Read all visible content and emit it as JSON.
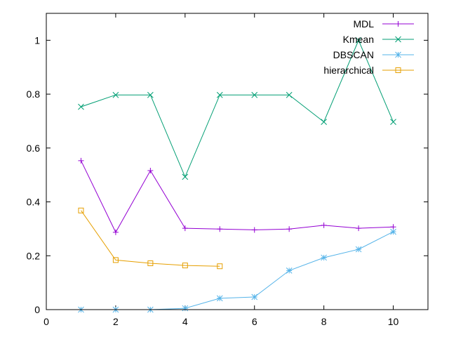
{
  "chart_data": {
    "type": "line",
    "title": "",
    "xlabel": "",
    "ylabel": "",
    "xlim": [
      0,
      11
    ],
    "ylim": [
      0,
      1.1
    ],
    "xticks": [
      0,
      2,
      4,
      6,
      8,
      10
    ],
    "yticks": [
      0,
      0.2,
      0.4,
      0.6,
      0.8,
      1
    ],
    "xtick_labels": [
      "0",
      "2",
      "4",
      "6",
      "8",
      "10"
    ],
    "ytick_labels": [
      "0",
      "0.2",
      "0.4",
      "0.6",
      "0.8",
      "1"
    ],
    "grid": false,
    "legend_position": "top-right",
    "series": [
      {
        "name": "MDL",
        "color": "#9400d3",
        "marker": "plus",
        "x": [
          1,
          2,
          3,
          4,
          5,
          6,
          7,
          8,
          9,
          10
        ],
        "y": [
          0.553,
          0.287,
          0.516,
          0.302,
          0.299,
          0.296,
          0.299,
          0.313,
          0.302,
          0.307
        ]
      },
      {
        "name": "Kmean",
        "color": "#009e73",
        "marker": "cross",
        "x": [
          1,
          2,
          3,
          4,
          5,
          6,
          7,
          8,
          9,
          10
        ],
        "y": [
          0.753,
          0.797,
          0.797,
          0.493,
          0.797,
          0.797,
          0.797,
          0.697,
          1.0,
          0.697
        ]
      },
      {
        "name": "DBSCAN",
        "color": "#56b4e9",
        "marker": "star",
        "x": [
          1,
          2,
          3,
          4,
          5,
          6,
          7,
          8,
          9,
          10
        ],
        "y": [
          0.0,
          0.0,
          0.0,
          0.005,
          0.042,
          0.047,
          0.145,
          0.193,
          0.224,
          0.289
        ]
      },
      {
        "name": "hierarchical",
        "color": "#e69f00",
        "marker": "square",
        "x": [
          1,
          2,
          3,
          4,
          5
        ],
        "y": [
          0.368,
          0.184,
          0.172,
          0.164,
          0.161
        ]
      }
    ]
  }
}
